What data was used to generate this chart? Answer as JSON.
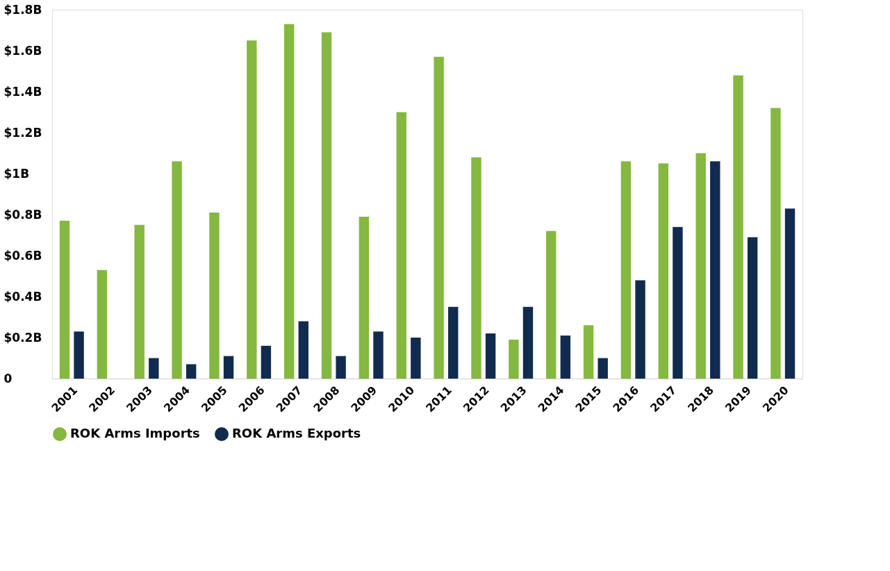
{
  "chart_data": {
    "type": "bar",
    "categories": [
      "2001",
      "2002",
      "2003",
      "2004",
      "2005",
      "2006",
      "2007",
      "2008",
      "2009",
      "2010",
      "2011",
      "2012",
      "2013",
      "2014",
      "2015",
      "2016",
      "2017",
      "2018",
      "2019",
      "2020"
    ],
    "series": [
      {
        "name": "ROK Arms Imports",
        "color": "#84b840",
        "values": [
          0.77,
          0.53,
          0.75,
          1.06,
          0.81,
          1.65,
          1.73,
          1.69,
          0.79,
          1.3,
          1.57,
          1.08,
          0.19,
          0.72,
          0.26,
          1.06,
          1.05,
          1.1,
          1.48,
          1.32
        ]
      },
      {
        "name": "ROK Arms Exports",
        "color": "#112b4f",
        "values": [
          0.23,
          null,
          0.1,
          0.07,
          0.11,
          0.16,
          0.28,
          0.11,
          0.23,
          0.2,
          0.35,
          0.22,
          0.35,
          0.21,
          0.1,
          0.48,
          0.74,
          1.06,
          0.69,
          0.83
        ]
      }
    ],
    "ylim": [
      0,
      1.8
    ],
    "yticks": [
      {
        "value": 0,
        "label": "0"
      },
      {
        "value": 0.2,
        "label": "$0.2B"
      },
      {
        "value": 0.4,
        "label": "$0.4B"
      },
      {
        "value": 0.6,
        "label": "$0.6B"
      },
      {
        "value": 0.8,
        "label": "$0.8B"
      },
      {
        "value": 1,
        "label": "$1B"
      },
      {
        "value": 1.2,
        "label": "$1.2B"
      },
      {
        "value": 1.4,
        "label": "$1.4B"
      },
      {
        "value": 1.6,
        "label": "$1.6B"
      },
      {
        "value": 1.8,
        "label": "$1.8B"
      }
    ],
    "grid": false,
    "legend": "bottom"
  }
}
